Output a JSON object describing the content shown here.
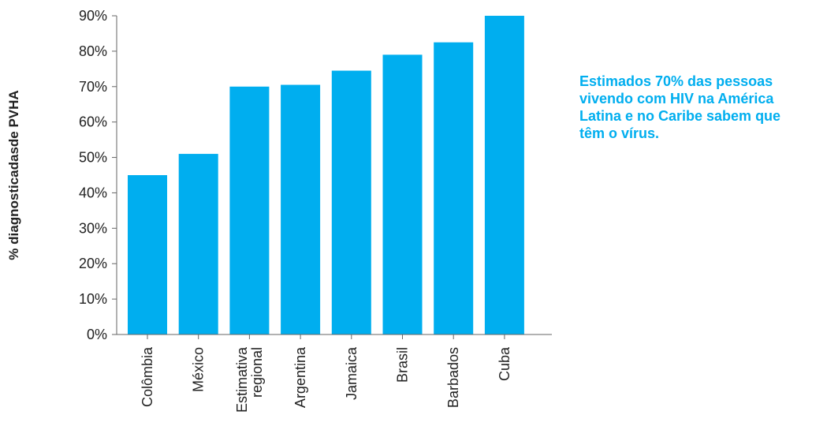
{
  "colors": {
    "bar": "#00AEEF",
    "axis": "#666666",
    "text": "#222222",
    "annotation": "#00AEEF"
  },
  "annotation": {
    "lines": [
      "Estimados 70% das pessoas",
      "vivendo com HIV na América",
      "Latina e no Caribe sabem que",
      "têm o vírus."
    ]
  },
  "chart_data": {
    "type": "bar",
    "title": "",
    "xlabel": "",
    "ylabel": "% diagnosticadasde PVHA",
    "ylim": [
      0,
      90
    ],
    "yticks": [
      0,
      10,
      20,
      30,
      40,
      50,
      60,
      70,
      80,
      90
    ],
    "ytick_labels": [
      "0%",
      "10%",
      "20%",
      "30%",
      "40%",
      "50%",
      "60%",
      "70%",
      "80%",
      "90%"
    ],
    "grid": false,
    "legend": "none",
    "categories": [
      [
        "Colômbia"
      ],
      [
        "México"
      ],
      [
        "Estimativa",
        "regional"
      ],
      [
        "Argentina"
      ],
      [
        "Jamaica"
      ],
      [
        "Brasil"
      ],
      [
        "Barbados"
      ],
      [
        "Cuba"
      ]
    ],
    "values": [
      45,
      51,
      70,
      70.5,
      74.5,
      79,
      82.5,
      90
    ]
  }
}
